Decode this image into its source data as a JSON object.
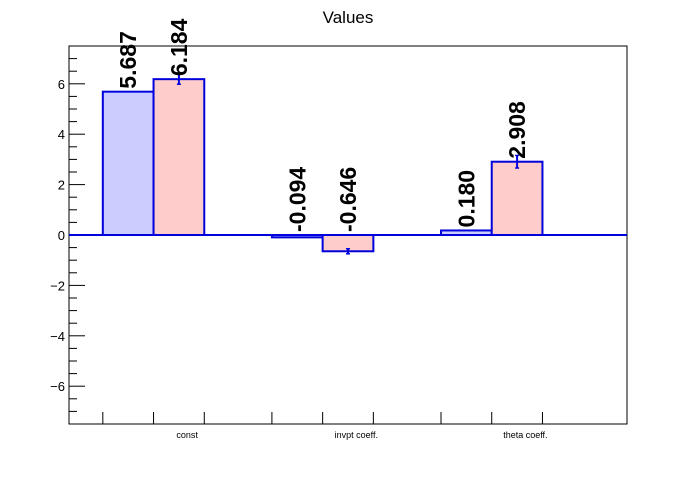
{
  "chart_data": {
    "type": "bar",
    "title": "Values",
    "xlabel": "",
    "ylabel": "",
    "categories": [
      "const",
      "invpt coeff.",
      "theta coeff."
    ],
    "ylim": [
      -7.5,
      7.5
    ],
    "yticks": [
      -6,
      -4,
      -2,
      0,
      2,
      4,
      6
    ],
    "ytick_labels": [
      "−6",
      "−4",
      "−2",
      "0",
      "2",
      "4",
      "6"
    ],
    "grid": false,
    "series": [
      {
        "values": [
          5.687,
          -0.094,
          0.18
        ],
        "errors": [
          0.0,
          0.0,
          0.0
        ],
        "labels": [
          "5.687",
          "-0.094",
          "0.180"
        ],
        "fill": "#ccccff",
        "edge": "#0000dd"
      },
      {
        "values": [
          6.184,
          -0.646,
          2.908
        ],
        "errors": [
          0.2,
          0.1,
          0.25
        ],
        "labels": [
          "6.184",
          "-0.646",
          "2.908"
        ],
        "fill": "#ffcccc",
        "edge": "#0000dd"
      }
    ]
  }
}
